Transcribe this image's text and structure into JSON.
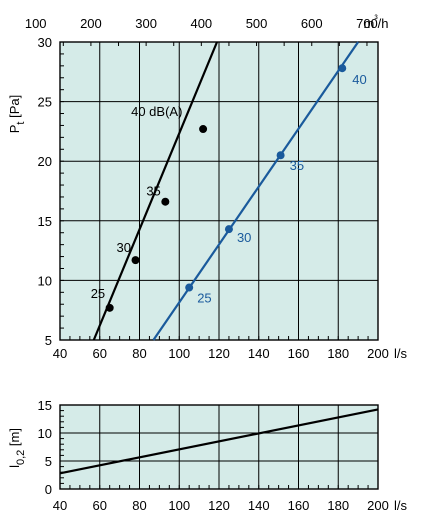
{
  "chart_data": [
    {
      "type": "line",
      "top_axis": {
        "label": "m³/h",
        "ticks": [
          "100",
          "200",
          "300",
          "400",
          "500",
          "600",
          "700"
        ]
      },
      "x_ticks": [
        "40",
        "60",
        "80",
        "100",
        "120",
        "140",
        "160",
        "180",
        "200"
      ],
      "xlabel": "l/s",
      "xlim": [
        40,
        200
      ],
      "ylabel": "Pt [Pa]",
      "ylabel_main": "P",
      "ylabel_sub": "t",
      "ylabel_tail": "[Pa]",
      "y_ticks": [
        "5",
        "10",
        "15",
        "20",
        "25",
        "30"
      ],
      "ylim": [
        5,
        30
      ],
      "grid": true,
      "series": [
        {
          "color": "#000000",
          "line": [
            [
              57,
              5
            ],
            [
              119,
              30
            ]
          ],
          "points": [
            {
              "x": 65,
              "y": 7.7,
              "label": "25"
            },
            {
              "x": 78,
              "y": 11.7,
              "label": "30"
            },
            {
              "x": 93,
              "y": 16.6,
              "label": "35"
            },
            {
              "x": 112,
              "y": 22.7,
              "label": "40 dB(A)"
            }
          ]
        },
        {
          "color": "#1a5a9c",
          "line": [
            [
              87,
              5
            ],
            [
              190,
              30
            ]
          ],
          "points": [
            {
              "x": 105,
              "y": 9.4,
              "label": "25"
            },
            {
              "x": 125,
              "y": 14.3,
              "label": "30"
            },
            {
              "x": 151,
              "y": 20.5,
              "label": "35"
            },
            {
              "x": 182,
              "y": 27.8,
              "label": "40"
            }
          ]
        }
      ]
    },
    {
      "type": "line",
      "x_ticks": [
        "40",
        "60",
        "80",
        "100",
        "120",
        "140",
        "160",
        "180",
        "200"
      ],
      "xlabel": "l/s",
      "xlim": [
        40,
        200
      ],
      "ylabel": "l0,2 [m]",
      "ylabel_main": "l",
      "ylabel_sub": "0,2",
      "ylabel_tail": "[m]",
      "y_ticks": [
        "0",
        "5",
        "10",
        "15"
      ],
      "ylim": [
        0,
        15
      ],
      "grid": true,
      "series": [
        {
          "color": "#000000",
          "values": [
            [
              40,
              2.8
            ],
            [
              200,
              14.2
            ]
          ]
        }
      ]
    }
  ]
}
